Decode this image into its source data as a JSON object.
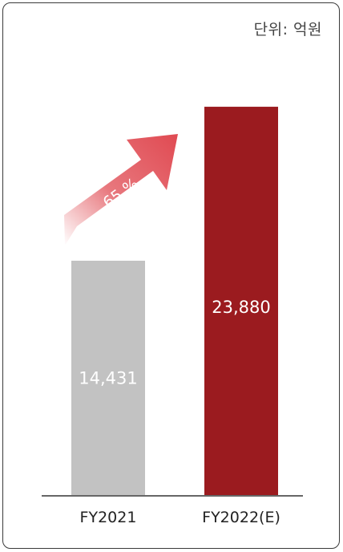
{
  "unit_label": "단위: 억원",
  "growth_label": "65 %",
  "colors": {
    "bar_fy2021": "#c2c2c2",
    "bar_fy2022": "#9b1b1f",
    "arrow": "#e04a52",
    "axis": "#666666"
  },
  "chart_data": {
    "type": "bar",
    "categories": [
      "FY2021",
      "FY2022(E)"
    ],
    "values": [
      14431,
      23880
    ],
    "value_labels": [
      "14,431",
      "23,880"
    ],
    "title": "",
    "xlabel": "",
    "ylabel": "",
    "ylim": [
      0,
      26000
    ],
    "grid": false,
    "legend": "none"
  }
}
